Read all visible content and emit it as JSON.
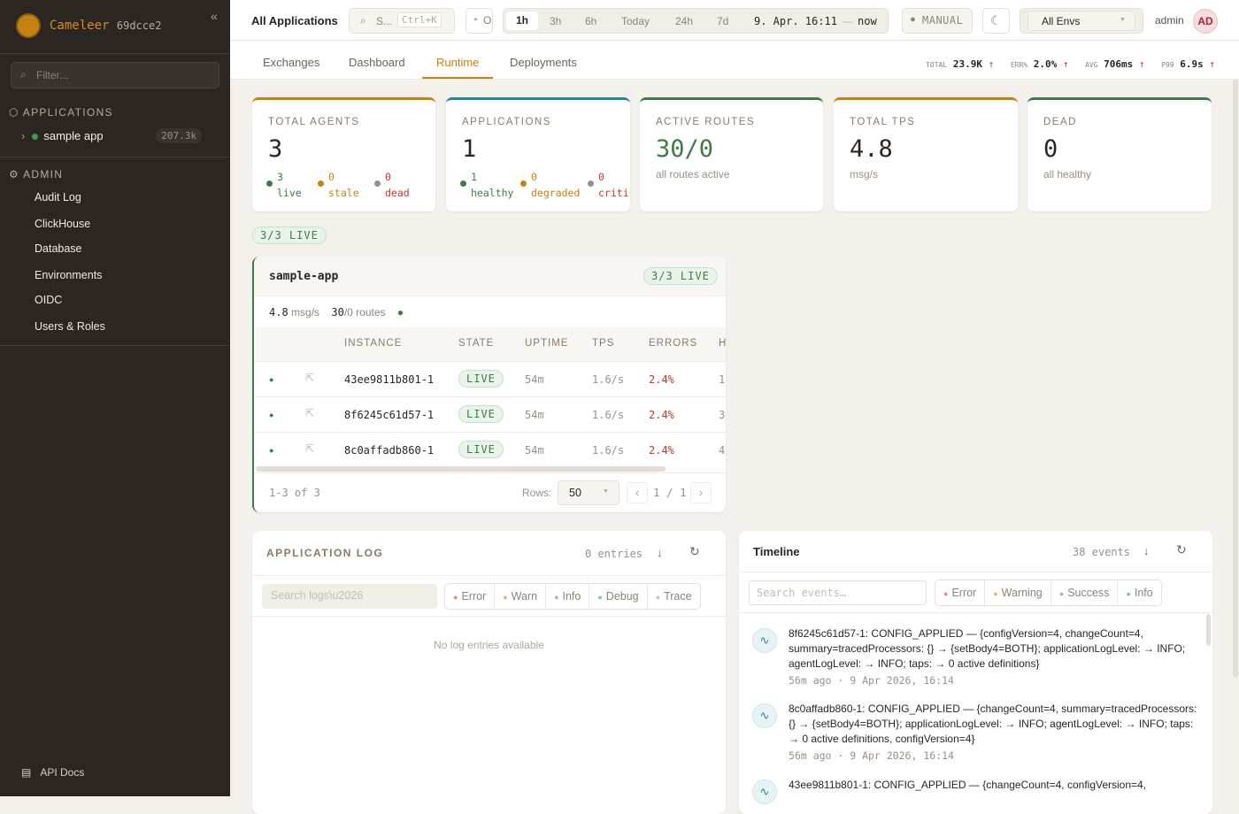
{
  "sidebar": {
    "brand": "Cameleer",
    "hash": "69dcce2",
    "collapse_icon": "«",
    "filter_placeholder": "Filter...",
    "applications_label": "APPLICATIONS",
    "apps": [
      {
        "name": "sample app",
        "count": "207.3k",
        "status": "live"
      }
    ],
    "admin_label": "ADMIN",
    "admin_items": [
      "Audit Log",
      "ClickHouse",
      "Database",
      "Environments",
      "OIDC",
      "Users & Roles"
    ],
    "api_docs": "API Docs"
  },
  "topbar": {
    "title": "All Applications",
    "search_placeholder": "S...",
    "search_shortcut": "Ctrl+K",
    "status_toggle": "O",
    "time_ranges": [
      "1h",
      "3h",
      "6h",
      "Today",
      "24h",
      "7d"
    ],
    "active_range": "1h",
    "range_from": "9. Apr. 16:11",
    "range_sep": "—",
    "range_to": "now",
    "refresh_mode": "MANUAL",
    "env_select": "All Envs",
    "user": "admin",
    "avatar": "AD"
  },
  "tabs": [
    "Exchanges",
    "Dashboard",
    "Runtime",
    "Deployments"
  ],
  "active_tab": "Runtime",
  "kpis": {
    "total_label": "TOTAL",
    "total": "23.9K",
    "err_label": "ERR%",
    "err": "2.0%",
    "avg_label": "AVG",
    "avg": "706ms",
    "p99_label": "P99",
    "p99": "6.9s",
    "arrow": "↑"
  },
  "colors": {
    "accent": "#c6820e",
    "live": "#3d7c47",
    "teal": "#1f8a99",
    "error": "#c0392b",
    "sidebar": "#2b2622"
  },
  "cards": [
    {
      "title": "TOTAL AGENTS",
      "value": "3",
      "subs": [
        {
          "n": "3",
          "l": "live"
        },
        {
          "n": "0",
          "l": "stale"
        },
        {
          "n": "0",
          "l": "dead"
        }
      ]
    },
    {
      "title": "APPLICATIONS",
      "value": "1",
      "subs": [
        {
          "n": "1",
          "l": "healthy"
        },
        {
          "n": "0",
          "l": "degraded"
        },
        {
          "n": "0",
          "l": "criti"
        }
      ]
    },
    {
      "title": "ACTIVE ROUTES",
      "value": "30/0",
      "sub": "all routes active"
    },
    {
      "title": "TOTAL TPS",
      "value": "4.8",
      "sub": "msg/s"
    },
    {
      "title": "DEAD",
      "value": "0",
      "sub": "all healthy"
    }
  ],
  "live_summary": "3/3 LIVE",
  "app_card": {
    "name": "sample-app",
    "badge": "3/3 LIVE",
    "tps": "4.8",
    "tps_unit": "msg/s",
    "routes": "30",
    "routes_rest": "/0 routes",
    "columns": [
      "INSTANCE",
      "STATE",
      "UPTIME",
      "TPS",
      "ERRORS",
      "H"
    ],
    "rows": [
      {
        "instance": "43ee9811b801-1",
        "state": "LIVE",
        "uptime": "54m",
        "tps": "1.6/s",
        "errors": "2.4%",
        "h": "1"
      },
      {
        "instance": "8f6245c61d57-1",
        "state": "LIVE",
        "uptime": "54m",
        "tps": "1.6/s",
        "errors": "2.4%",
        "h": "3"
      },
      {
        "instance": "8c0affadb860-1",
        "state": "LIVE",
        "uptime": "54m",
        "tps": "1.6/s",
        "errors": "2.4%",
        "h": "4"
      }
    ],
    "range": "1-3 of 3",
    "rows_label": "Rows:",
    "rows_value": "50",
    "page": "1 / 1",
    "prev": "‹",
    "next": "›"
  },
  "app_log": {
    "title": "APPLICATION LOG",
    "count": "0 entries",
    "search_placeholder": "Search logs\\u2026",
    "levels": [
      "Error",
      "Warn",
      "Info",
      "Debug",
      "Trace"
    ],
    "empty": "No log entries available"
  },
  "timeline": {
    "title": "Timeline",
    "count": "38 events",
    "search_placeholder": "Search events…",
    "levels": [
      "Error",
      "Warning",
      "Success",
      "Info"
    ],
    "events": [
      {
        "text": "8f6245c61d57-1: CONFIG_APPLIED — {configVersion=4, changeCount=4, summary=tracedProcessors: {} → {setBody4=BOTH}; applicationLogLevel: → INFO; agentLogLevel: → INFO; taps: → 0 active definitions}",
        "time": "56m ago · 9 Apr 2026, 16:14"
      },
      {
        "text": "8c0affadb860-1: CONFIG_APPLIED — {changeCount=4, summary=tracedProcessors: {} → {setBody4=BOTH}; applicationLogLevel: → INFO; agentLogLevel: → INFO; taps: → 0 active definitions, configVersion=4}",
        "time": "56m ago · 9 Apr 2026, 16:14"
      },
      {
        "text": "43ee9811b801-1: CONFIG_APPLIED — {changeCount=4, configVersion=4,",
        "time": ""
      }
    ]
  }
}
